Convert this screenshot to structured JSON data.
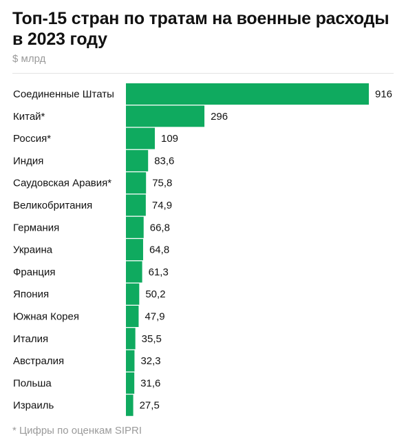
{
  "chart_data": {
    "type": "bar",
    "orientation": "horizontal",
    "title": "Топ-15 стран по тратам на военные расходы в 2023 году",
    "subtitle": "$ млрд",
    "categories": [
      "Соединенные Штаты",
      "Китай*",
      "Россия*",
      "Индия",
      "Саудовская Аравия*",
      "Великобритания",
      "Германия",
      "Украина",
      "Франция",
      "Япония",
      "Южная Корея",
      "Италия",
      "Австралия",
      "Польша",
      "Израиль"
    ],
    "values": [
      916,
      296,
      109,
      83.6,
      75.8,
      74.9,
      66.8,
      64.8,
      61.3,
      50.2,
      47.9,
      35.5,
      32.3,
      31.6,
      27.5
    ],
    "value_labels": [
      "916",
      "296",
      "109",
      "83,6",
      "75,8",
      "74,9",
      "66,8",
      "64,8",
      "61,3",
      "50,2",
      "47,9",
      "35,5",
      "32,3",
      "31,6",
      "27,5"
    ],
    "xlim": [
      0,
      916
    ],
    "grid": false,
    "bar_color": "#0faa5f",
    "footnote": "* Цифры по оценкам SIPRI"
  }
}
